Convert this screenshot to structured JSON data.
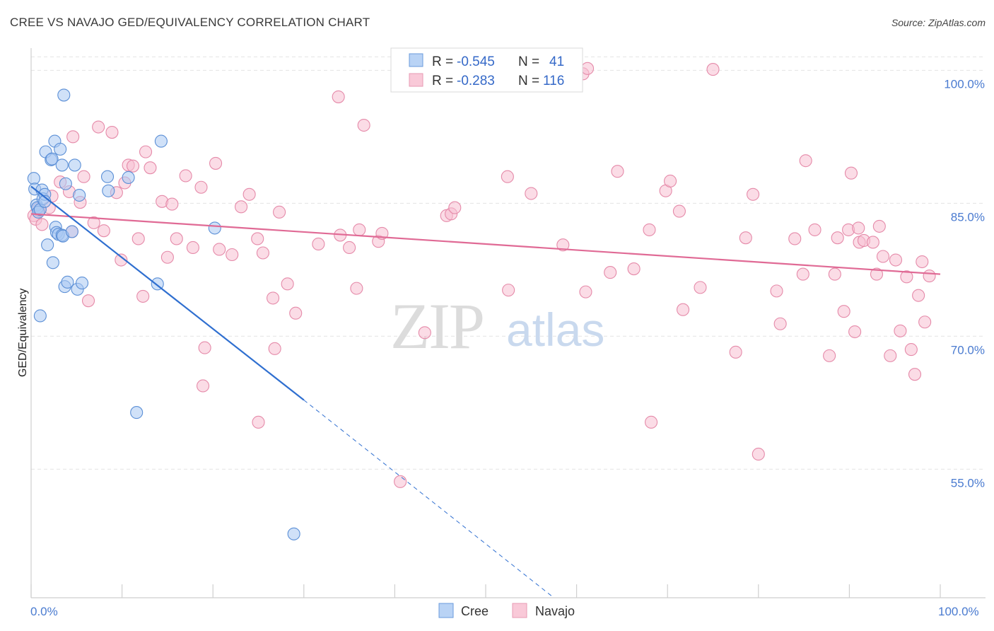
{
  "header": {
    "title": "CREE VS NAVAJO GED/EQUIVALENCY CORRELATION CHART",
    "source": "Source: ZipAtlas.com"
  },
  "watermark": {
    "zip": "ZIP",
    "atlas": "atlas"
  },
  "legend": {
    "cree": {
      "r_label": "R =",
      "r_value": "-0.545",
      "n_label": "N =",
      "n_value": "41"
    },
    "navajo": {
      "r_label": "R =",
      "r_value": "-0.283",
      "n_label": "N =",
      "n_value": "116"
    }
  },
  "bottom_legend": {
    "cree": "Cree",
    "navajo": "Navajo"
  },
  "colors": {
    "cree_fill": "#a9c9f2",
    "cree_stroke": "#5b8fd6",
    "cree_line": "#2f6fd0",
    "navajo_fill": "#f7c0d1",
    "navajo_stroke": "#e58aa9",
    "navajo_line": "#e06a95",
    "grid": "#e3e3e3",
    "tick_label": "#4a7bd0"
  },
  "chart_data": {
    "type": "scatter",
    "title": "CREE VS NAVAJO GED/EQUIVALENCY CORRELATION CHART",
    "xlabel": "",
    "ylabel": "GED/Equivalency",
    "xlim": [
      0,
      100
    ],
    "ylim": [
      40.5,
      102.5
    ],
    "x_tick_labels": [
      "0.0%",
      "100.0%"
    ],
    "y_ticks": [
      55,
      70,
      85,
      100
    ],
    "y_tick_labels": [
      "55.0%",
      "70.0%",
      "85.0%",
      "100.0%"
    ],
    "grid": true,
    "legend_position": "top-center",
    "series": [
      {
        "name": "Cree",
        "R": -0.545,
        "N": 41,
        "trend": {
          "x": [
            0,
            30
          ],
          "y": [
            86.9,
            62.8
          ],
          "dashed_to": [
            57.5,
            40.5
          ]
        },
        "points": [
          [
            0.3,
            87.8
          ],
          [
            0.4,
            86.6
          ],
          [
            0.6,
            84.8
          ],
          [
            0.7,
            84.5
          ],
          [
            0.8,
            84.0
          ],
          [
            1.0,
            84.3
          ],
          [
            1.2,
            86.5
          ],
          [
            1.3,
            85.5
          ],
          [
            1.5,
            86.0
          ],
          [
            1.6,
            90.8
          ],
          [
            1.8,
            80.3
          ],
          [
            2.2,
            89.9
          ],
          [
            2.3,
            90.0
          ],
          [
            2.4,
            78.3
          ],
          [
            2.6,
            92.0
          ],
          [
            2.7,
            82.3
          ],
          [
            2.8,
            81.7
          ],
          [
            3.0,
            81.5
          ],
          [
            3.2,
            91.1
          ],
          [
            3.4,
            81.4
          ],
          [
            3.4,
            89.3
          ],
          [
            3.5,
            81.3
          ],
          [
            3.6,
            97.2
          ],
          [
            3.7,
            75.6
          ],
          [
            3.8,
            87.2
          ],
          [
            4.0,
            76.1
          ],
          [
            4.5,
            81.8
          ],
          [
            4.8,
            89.3
          ],
          [
            5.1,
            75.3
          ],
          [
            5.3,
            85.9
          ],
          [
            5.6,
            76.0
          ],
          [
            1.0,
            72.3
          ],
          [
            8.4,
            88.0
          ],
          [
            8.5,
            86.4
          ],
          [
            10.7,
            87.9
          ],
          [
            11.6,
            61.4
          ],
          [
            13.9,
            75.9
          ],
          [
            14.3,
            92.0
          ],
          [
            20.2,
            82.2
          ],
          [
            28.9,
            47.7
          ],
          [
            1.5,
            85.2
          ]
        ]
      },
      {
        "name": "Navajo",
        "R": -0.283,
        "N": 116,
        "trend": {
          "x": [
            0,
            100
          ],
          "y": [
            83.8,
            77.0
          ]
        },
        "points": [
          [
            0.3,
            83.6
          ],
          [
            0.5,
            83.2
          ],
          [
            0.8,
            84.4
          ],
          [
            0.9,
            84.2
          ],
          [
            1.2,
            82.6
          ],
          [
            2.0,
            84.5
          ],
          [
            2.3,
            85.8
          ],
          [
            3.2,
            87.4
          ],
          [
            4.2,
            86.3
          ],
          [
            4.5,
            81.8
          ],
          [
            4.6,
            92.5
          ],
          [
            5.4,
            85.1
          ],
          [
            5.8,
            88.0
          ],
          [
            6.3,
            74.0
          ],
          [
            6.9,
            82.8
          ],
          [
            7.4,
            93.6
          ],
          [
            8.0,
            81.9
          ],
          [
            8.9,
            93.0
          ],
          [
            9.4,
            86.2
          ],
          [
            9.9,
            78.6
          ],
          [
            10.3,
            87.3
          ],
          [
            10.7,
            89.3
          ],
          [
            11.2,
            89.2
          ],
          [
            11.8,
            81.0
          ],
          [
            12.3,
            74.5
          ],
          [
            12.6,
            90.8
          ],
          [
            13.1,
            89.0
          ],
          [
            14.4,
            85.2
          ],
          [
            15.0,
            78.9
          ],
          [
            15.5,
            84.9
          ],
          [
            16.0,
            81.0
          ],
          [
            17.0,
            88.1
          ],
          [
            17.8,
            80.0
          ],
          [
            18.7,
            86.8
          ],
          [
            19.1,
            68.7
          ],
          [
            18.9,
            64.4
          ],
          [
            20.3,
            89.5
          ],
          [
            20.7,
            79.8
          ],
          [
            22.1,
            79.2
          ],
          [
            23.1,
            84.6
          ],
          [
            24.0,
            86.0
          ],
          [
            24.9,
            81.0
          ],
          [
            25.5,
            79.4
          ],
          [
            25.0,
            60.3
          ],
          [
            26.6,
            74.3
          ],
          [
            26.8,
            68.6
          ],
          [
            27.3,
            84.0
          ],
          [
            28.2,
            75.9
          ],
          [
            29.1,
            72.6
          ],
          [
            31.6,
            80.4
          ],
          [
            33.8,
            97.0
          ],
          [
            34.0,
            81.4
          ],
          [
            35.0,
            80.0
          ],
          [
            35.8,
            75.4
          ],
          [
            36.1,
            82.0
          ],
          [
            36.6,
            93.8
          ],
          [
            38.2,
            80.7
          ],
          [
            38.6,
            81.6
          ],
          [
            40.6,
            53.6
          ],
          [
            43.3,
            70.4
          ],
          [
            45.7,
            83.6
          ],
          [
            46.2,
            83.8
          ],
          [
            46.6,
            84.5
          ],
          [
            52.0,
            100.0
          ],
          [
            52.4,
            88.0
          ],
          [
            52.5,
            75.2
          ],
          [
            55.0,
            86.1
          ],
          [
            58.5,
            80.3
          ],
          [
            60.7,
            99.6
          ],
          [
            61.2,
            100.2
          ],
          [
            61.0,
            75.0
          ],
          [
            63.7,
            77.2
          ],
          [
            64.5,
            88.6
          ],
          [
            66.3,
            77.6
          ],
          [
            68.0,
            82.0
          ],
          [
            68.2,
            60.3
          ],
          [
            69.8,
            86.4
          ],
          [
            70.3,
            87.5
          ],
          [
            71.3,
            84.1
          ],
          [
            71.7,
            73.0
          ],
          [
            73.6,
            75.5
          ],
          [
            75.0,
            100.1
          ],
          [
            77.5,
            68.2
          ],
          [
            78.6,
            81.1
          ],
          [
            79.4,
            86.0
          ],
          [
            80.0,
            56.7
          ],
          [
            82.0,
            75.1
          ],
          [
            82.4,
            71.4
          ],
          [
            84.0,
            81.0
          ],
          [
            84.9,
            77.0
          ],
          [
            85.2,
            89.8
          ],
          [
            86.2,
            82.0
          ],
          [
            87.8,
            67.8
          ],
          [
            88.4,
            77.0
          ],
          [
            88.7,
            81.1
          ],
          [
            89.4,
            72.8
          ],
          [
            89.9,
            82.0
          ],
          [
            90.2,
            88.4
          ],
          [
            90.6,
            70.5
          ],
          [
            91.0,
            82.2
          ],
          [
            91.1,
            80.6
          ],
          [
            91.6,
            80.8
          ],
          [
            92.6,
            80.6
          ],
          [
            93.0,
            77.0
          ],
          [
            93.3,
            82.4
          ],
          [
            93.7,
            79.0
          ],
          [
            94.5,
            67.8
          ],
          [
            95.1,
            78.6
          ],
          [
            95.6,
            70.6
          ],
          [
            96.3,
            76.7
          ],
          [
            96.8,
            68.5
          ],
          [
            97.2,
            65.7
          ],
          [
            97.6,
            74.6
          ],
          [
            98.0,
            78.4
          ],
          [
            98.3,
            71.6
          ],
          [
            98.8,
            76.8
          ]
        ]
      }
    ]
  }
}
